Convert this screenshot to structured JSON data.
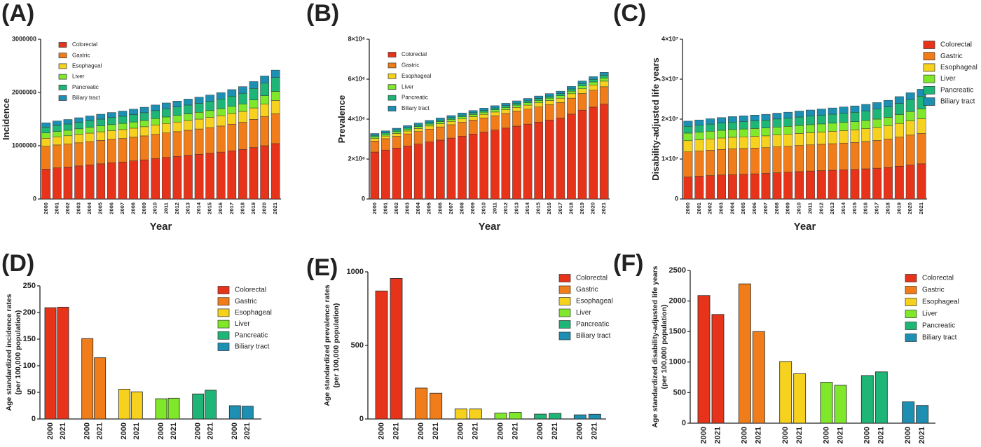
{
  "panels": [
    "(A)",
    "(B)",
    "(C)",
    "(D)",
    "(E)",
    "(F)"
  ],
  "legend": [
    "Colorectal",
    "Gastric",
    "Esophageal",
    "Liver",
    "Pancreatic",
    "Biliary tract"
  ],
  "colors": [
    "#e8331b",
    "#f07d1a",
    "#f6d21e",
    "#7fe82a",
    "#1db676",
    "#1c8fb2"
  ],
  "chart_data": [
    {
      "type": "bar",
      "stacked": true,
      "xlabel": "Year",
      "ylabel": "Incidence",
      "ylim": [
        0,
        3000000
      ],
      "yticks": [
        "0",
        "1000000",
        "2000000",
        "3000000"
      ],
      "legend_position": "top-left",
      "categories": [
        "2000",
        "2001",
        "2002",
        "2003",
        "2004",
        "2005",
        "2006",
        "2007",
        "2008",
        "2009",
        "2010",
        "2011",
        "2012",
        "2013",
        "2014",
        "2015",
        "2016",
        "2017",
        "2018",
        "2019",
        "2020",
        "2021"
      ],
      "series": [
        {
          "name": "Colorectal",
          "values": [
            560000,
            585000,
            600000,
            620000,
            640000,
            660000,
            680000,
            695000,
            715000,
            735000,
            760000,
            780000,
            800000,
            820000,
            840000,
            860000,
            880000,
            905000,
            930000,
            965000,
            1000000,
            1040000
          ]
        },
        {
          "name": "Gastric",
          "values": [
            430000,
            430000,
            432000,
            435000,
            437000,
            440000,
            440000,
            442000,
            445000,
            450000,
            455000,
            460000,
            465000,
            470000,
            475000,
            480000,
            490000,
            500000,
            510000,
            530000,
            550000,
            560000
          ]
        },
        {
          "name": "Esophageal",
          "values": [
            150000,
            152000,
            155000,
            157000,
            160000,
            162000,
            165000,
            167000,
            170000,
            172000,
            175000,
            178000,
            180000,
            183000,
            185000,
            190000,
            195000,
            200000,
            205000,
            215000,
            230000,
            250000
          ]
        },
        {
          "name": "Liver",
          "values": [
            100000,
            102000,
            104000,
            106000,
            108000,
            110000,
            112000,
            114000,
            116000,
            118000,
            120000,
            122000,
            124000,
            126000,
            128000,
            130000,
            133000,
            136000,
            140000,
            150000,
            160000,
            170000
          ]
        },
        {
          "name": "Pancreatic",
          "values": [
            110000,
            113000,
            117000,
            120000,
            124000,
            128000,
            132000,
            136000,
            140000,
            145000,
            150000,
            155000,
            160000,
            165000,
            170000,
            175000,
            180000,
            190000,
            200000,
            215000,
            235000,
            260000
          ]
        },
        {
          "name": "Biliary tract",
          "values": [
            80000,
            83000,
            85000,
            88000,
            90000,
            92000,
            95000,
            97000,
            100000,
            103000,
            105000,
            108000,
            110000,
            112000,
            115000,
            118000,
            120000,
            123000,
            125000,
            130000,
            135000,
            140000
          ]
        }
      ]
    },
    {
      "type": "bar",
      "stacked": true,
      "xlabel": "Year",
      "ylabel": "Prevalence",
      "ylim": [
        0,
        8000000
      ],
      "yticks": [
        "0",
        "2×10⁶",
        "4×10⁶",
        "6×10⁶",
        "8×10⁶"
      ],
      "legend_position": "top-left",
      "categories": [
        "2000",
        "2001",
        "2002",
        "2003",
        "2004",
        "2005",
        "2006",
        "2007",
        "2008",
        "2009",
        "2010",
        "2011",
        "2012",
        "2013",
        "2014",
        "2015",
        "2016",
        "2017",
        "2018",
        "2019",
        "2020",
        "2021"
      ],
      "series": [
        {
          "name": "Colorectal",
          "values": [
            2350000,
            2450000,
            2550000,
            2650000,
            2750000,
            2850000,
            2950000,
            3050000,
            3150000,
            3250000,
            3350000,
            3450000,
            3550000,
            3650000,
            3750000,
            3850000,
            3950000,
            4050000,
            4250000,
            4450000,
            4600000,
            4750000
          ]
        },
        {
          "name": "Gastric",
          "values": [
            550000,
            570000,
            590000,
            610000,
            630000,
            650000,
            660000,
            670000,
            690000,
            700000,
            710000,
            720000,
            730000,
            740000,
            750000,
            760000,
            770000,
            780000,
            800000,
            830000,
            850000,
            870000
          ]
        },
        {
          "name": "Esophageal",
          "values": [
            130000,
            135000,
            140000,
            145000,
            150000,
            155000,
            160000,
            165000,
            170000,
            175000,
            180000,
            185000,
            190000,
            195000,
            200000,
            205000,
            210000,
            215000,
            220000,
            240000,
            260000,
            280000
          ]
        },
        {
          "name": "Liver",
          "values": [
            90000,
            92000,
            94000,
            96000,
            98000,
            100000,
            102000,
            104000,
            106000,
            108000,
            110000,
            112000,
            114000,
            116000,
            118000,
            120000,
            122000,
            124000,
            130000,
            140000,
            150000,
            160000
          ]
        },
        {
          "name": "Pancreatic",
          "values": [
            70000,
            72000,
            74000,
            76000,
            78000,
            80000,
            82000,
            84000,
            86000,
            88000,
            90000,
            92000,
            94000,
            96000,
            98000,
            100000,
            103000,
            106000,
            110000,
            120000,
            130000,
            140000
          ]
        },
        {
          "name": "Biliary tract",
          "values": [
            90000,
            92000,
            94000,
            96000,
            98000,
            100000,
            102000,
            104000,
            106000,
            108000,
            110000,
            112000,
            114000,
            116000,
            118000,
            120000,
            122000,
            124000,
            126000,
            130000,
            135000,
            140000
          ]
        }
      ]
    },
    {
      "type": "bar",
      "stacked": true,
      "xlabel": "Year",
      "ylabel": "Disability-adjusted life years",
      "ylim": [
        0,
        40000000
      ],
      "yticks": [
        "0",
        "1×10⁷",
        "2×10⁷",
        "3×10⁷",
        "4×10⁷"
      ],
      "legend_position": "right",
      "categories": [
        "2000",
        "2001",
        "2002",
        "2003",
        "2004",
        "2005",
        "2006",
        "2007",
        "2008",
        "2009",
        "2010",
        "2011",
        "2012",
        "2013",
        "2014",
        "2015",
        "2016",
        "2017",
        "2018",
        "2019",
        "2020",
        "2021"
      ],
      "series": [
        {
          "name": "Colorectal",
          "values": [
            5500000,
            5700000,
            5850000,
            6000000,
            6100000,
            6200000,
            6300000,
            6400000,
            6550000,
            6700000,
            6850000,
            7000000,
            7100000,
            7200000,
            7300000,
            7400000,
            7550000,
            7700000,
            7900000,
            8200000,
            8500000,
            8800000
          ]
        },
        {
          "name": "Gastric",
          "values": [
            6300000,
            6300000,
            6350000,
            6400000,
            6450000,
            6450000,
            6450000,
            6450000,
            6500000,
            6500000,
            6550000,
            6550000,
            6600000,
            6650000,
            6700000,
            6750000,
            6850000,
            6950000,
            7100000,
            7300000,
            7500000,
            7600000
          ]
        },
        {
          "name": "Esophageal",
          "values": [
            2800000,
            2820000,
            2850000,
            2870000,
            2900000,
            2920000,
            2940000,
            2960000,
            2980000,
            3000000,
            3020000,
            3050000,
            3070000,
            3100000,
            3130000,
            3160000,
            3200000,
            3250000,
            3300000,
            3400000,
            3550000,
            3700000
          ]
        },
        {
          "name": "Liver",
          "values": [
            1900000,
            1910000,
            1920000,
            1930000,
            1940000,
            1950000,
            1960000,
            1970000,
            1980000,
            1990000,
            2000000,
            2010000,
            2020000,
            2030000,
            2040000,
            2050000,
            2070000,
            2100000,
            2150000,
            2250000,
            2350000,
            2450000
          ]
        },
        {
          "name": "Pancreatic",
          "values": [
            1700000,
            1740000,
            1780000,
            1820000,
            1860000,
            1900000,
            1940000,
            1980000,
            2020000,
            2060000,
            2100000,
            2150000,
            2200000,
            2250000,
            2300000,
            2350000,
            2400000,
            2500000,
            2600000,
            2800000,
            3000000,
            3200000
          ]
        },
        {
          "name": "Biliary tract",
          "values": [
            1300000,
            1320000,
            1340000,
            1360000,
            1380000,
            1400000,
            1420000,
            1440000,
            1460000,
            1480000,
            1500000,
            1520000,
            1540000,
            1560000,
            1580000,
            1600000,
            1620000,
            1640000,
            1660000,
            1680000,
            1700000,
            1720000
          ]
        }
      ]
    },
    {
      "type": "bar",
      "xlabel": "",
      "ylabel": "Age standardized incidence rates (per 100,000 population)",
      "ylabel_lines": [
        "Age standardized incidence rates",
        "(per 100,000 population)"
      ],
      "ylim": [
        0,
        250
      ],
      "yticks": [
        "0",
        "50",
        "100",
        "150",
        "200",
        "250"
      ],
      "legend_position": "right",
      "group_labels": [
        "2000",
        "2021"
      ],
      "groups": [
        {
          "name": "Colorectal",
          "values": [
            209,
            210
          ]
        },
        {
          "name": "Gastric",
          "values": [
            151,
            115
          ]
        },
        {
          "name": "Esophageal",
          "values": [
            56,
            51
          ]
        },
        {
          "name": "Liver",
          "values": [
            38,
            39
          ]
        },
        {
          "name": "Pancreatic",
          "values": [
            47,
            54
          ]
        },
        {
          "name": "Biliary tract",
          "values": [
            25,
            24
          ]
        }
      ]
    },
    {
      "type": "bar",
      "xlabel": "",
      "ylabel": "Age standardized prevalence rates (per 100,000 population)",
      "ylabel_lines": [
        "Age standardized prevalence rates",
        "(per 100,000 population)"
      ],
      "ylim": [
        0,
        1000
      ],
      "yticks": [
        "0",
        "500",
        "1000"
      ],
      "legend_position": "right",
      "group_labels": [
        "2000",
        "2021"
      ],
      "groups": [
        {
          "name": "Colorectal",
          "values": [
            870,
            955
          ]
        },
        {
          "name": "Gastric",
          "values": [
            210,
            175
          ]
        },
        {
          "name": "Esophageal",
          "values": [
            68,
            68
          ]
        },
        {
          "name": "Liver",
          "values": [
            40,
            45
          ]
        },
        {
          "name": "Pancreatic",
          "values": [
            33,
            38
          ]
        },
        {
          "name": "Biliary tract",
          "values": [
            28,
            32
          ]
        }
      ]
    },
    {
      "type": "bar",
      "xlabel": "",
      "ylabel": "Age standardized disability-adjusted life years (per 100,000 population)",
      "ylabel_lines": [
        "Age standardized disability-adjusted life years",
        "(per 100,000 population)"
      ],
      "ylim": [
        0,
        2500
      ],
      "yticks": [
        "0",
        "500",
        "1000",
        "1500",
        "2000",
        "2500"
      ],
      "legend_position": "right",
      "group_labels": [
        "2000",
        "2021"
      ],
      "groups": [
        {
          "name": "Colorectal",
          "values": [
            2090,
            1780
          ]
        },
        {
          "name": "Gastric",
          "values": [
            2280,
            1500
          ]
        },
        {
          "name": "Esophageal",
          "values": [
            1010,
            810
          ]
        },
        {
          "name": "Liver",
          "values": [
            670,
            620
          ]
        },
        {
          "name": "Pancreatic",
          "values": [
            780,
            840
          ]
        },
        {
          "name": "Biliary tract",
          "values": [
            350,
            290
          ]
        }
      ]
    }
  ]
}
